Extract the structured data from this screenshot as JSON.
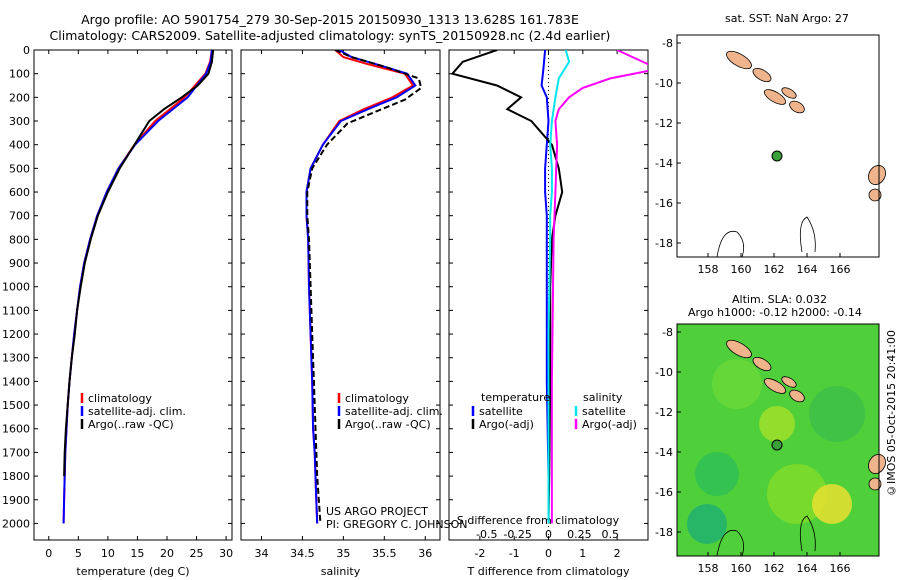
{
  "header": {
    "line1": "Argo profile: AO 5901754_279 30-Sep-2015 20150930_1313 13.628S 161.783E",
    "line2": "Climatology: CARS2009. Satellite-adjusted climatology: synTS_20150928.nc (2.4d earlier)"
  },
  "colors": {
    "climatology": "#ff0000",
    "satellite": "#0000ff",
    "argo": "#000000",
    "sal_satellite": "#00e5ee",
    "sal_argo": "#ff00ff",
    "land": "#f0b48c",
    "float_marker": "#3aa03a"
  },
  "chart_data": [
    {
      "type": "line",
      "name": "temperature-panel",
      "xlabel": "temperature (deg C)",
      "xticks": [
        0,
        5,
        10,
        15,
        20,
        25,
        30
      ],
      "xlim": [
        -2.5,
        31
      ],
      "ylim": [
        2070,
        0
      ],
      "yticks": [
        0,
        100,
        200,
        300,
        400,
        500,
        600,
        700,
        800,
        900,
        1000,
        1100,
        1200,
        1300,
        1400,
        1500,
        1600,
        1700,
        1800,
        1900,
        2000
      ],
      "legend": [
        "climatology",
        "satellite-adj. clim.",
        "Argo(..raw -QC)"
      ],
      "series": [
        {
          "name": "climatology",
          "color": "#ff0000",
          "x": [
            27.6,
            27.3,
            26.5,
            23,
            18,
            14.5,
            11.8,
            9.8,
            8.2,
            7,
            6,
            5.3,
            4.8,
            4.3,
            3.9,
            3.5,
            3.2,
            3,
            2.8,
            2.7,
            2.6,
            2.5
          ],
          "y": [
            0,
            50,
            100,
            200,
            300,
            400,
            500,
            600,
            700,
            800,
            900,
            1000,
            1100,
            1200,
            1300,
            1400,
            1500,
            1600,
            1700,
            1800,
            1900,
            2000
          ]
        },
        {
          "name": "satellite-adj. clim.",
          "color": "#0000ff",
          "x": [
            27.6,
            27.4,
            26.6,
            23.5,
            18.5,
            14.6,
            11.8,
            9.8,
            8.2,
            7,
            6,
            5.3,
            4.8,
            4.3,
            3.9,
            3.5,
            3.2,
            3,
            2.8,
            2.7,
            2.6,
            2.5
          ],
          "y": [
            0,
            50,
            100,
            200,
            300,
            400,
            500,
            600,
            700,
            800,
            900,
            1000,
            1100,
            1200,
            1300,
            1400,
            1500,
            1600,
            1700,
            1800,
            1900,
            2000
          ]
        },
        {
          "name": "Argo(..raw -QC)",
          "color": "#000000",
          "x": [
            27.8,
            27.6,
            27,
            25.2,
            22.5,
            19.5,
            17,
            14.5,
            12,
            10,
            8.3,
            7.1,
            6.1,
            5.4,
            4.8,
            4.4,
            3.9,
            3.5,
            3.2,
            2.9,
            2.7,
            2.6
          ],
          "y": [
            0,
            50,
            100,
            150,
            200,
            250,
            300,
            400,
            500,
            600,
            700,
            800,
            900,
            1000,
            1100,
            1200,
            1300,
            1400,
            1500,
            1600,
            1700,
            1800
          ]
        }
      ]
    },
    {
      "type": "line",
      "name": "salinity-panel",
      "xlabel": "salinity",
      "xticks": [
        34,
        34.5,
        35,
        35.5,
        36
      ],
      "xlim": [
        33.75,
        36.18
      ],
      "ylim": [
        2070,
        0
      ],
      "legend": [
        "climatology",
        "satellite-adj. clim.",
        "Argo(..raw -QC)"
      ],
      "series": [
        {
          "name": "climatology",
          "color": "#ff0000",
          "x": [
            34.9,
            35,
            35.3,
            35.75,
            35.85,
            35.6,
            35.25,
            34.95,
            34.75,
            34.6,
            34.55,
            34.55,
            34.57,
            34.58,
            34.6,
            34.62,
            34.63,
            34.65,
            34.66,
            34.67,
            34.68
          ],
          "y": [
            0,
            30,
            60,
            100,
            150,
            200,
            250,
            300,
            400,
            500,
            600,
            700,
            800,
            1000,
            1200,
            1400,
            1600,
            1700,
            1800,
            1900,
            2000
          ]
        },
        {
          "name": "satellite-adj. clim.",
          "color": "#0000ff",
          "x": [
            34.95,
            35.1,
            35.4,
            35.78,
            35.88,
            35.65,
            35.3,
            34.97,
            34.75,
            34.6,
            34.55,
            34.55,
            34.57,
            34.58,
            34.6,
            34.62,
            34.63,
            34.65,
            34.66,
            34.67,
            34.68
          ],
          "y": [
            0,
            30,
            60,
            100,
            150,
            200,
            250,
            300,
            400,
            500,
            600,
            700,
            800,
            1000,
            1200,
            1400,
            1600,
            1700,
            1800,
            1900,
            2000
          ]
        },
        {
          "name": "Argo(..raw -QC)",
          "color": "#000000",
          "x": [
            34.9,
            35.1,
            35.5,
            35.92,
            35.95,
            35.75,
            35.4,
            35.05,
            34.8,
            34.62,
            34.56,
            34.56,
            34.58,
            34.6,
            34.62,
            34.64,
            34.66,
            34.68,
            34.7,
            34.72
          ],
          "y": [
            0,
            30,
            70,
            120,
            160,
            210,
            260,
            310,
            400,
            500,
            600,
            700,
            800,
            1000,
            1200,
            1400,
            1600,
            1800,
            1900,
            2000
          ]
        }
      ]
    },
    {
      "type": "line",
      "name": "difference-panel",
      "xlabel": "T difference from climatology",
      "xlabel2": "S difference from climatology",
      "xticks": [
        -2,
        -1,
        0,
        1,
        2
      ],
      "xticks_top": [
        "-0.5",
        "-0.25",
        "0",
        "0.25",
        "0.5"
      ],
      "xlim": [
        -2.9,
        2.9
      ],
      "ylim": [
        2070,
        0
      ],
      "legend_titles": [
        "temperature",
        "salinity"
      ],
      "legend": [
        "satellite",
        "Argo(-adj)",
        "satellite",
        "Argo(-adj)"
      ],
      "series": [
        {
          "name": "T satellite",
          "color": "#0000ff",
          "x": [
            -0.1,
            -0.15,
            -0.2,
            -0.05,
            0,
            -0.05,
            -0.1,
            -0.1,
            -0.05,
            -0.05,
            -0.05,
            -0.05,
            0,
            0
          ],
          "y": [
            0,
            80,
            150,
            200,
            300,
            400,
            500,
            600,
            700,
            800,
            1000,
            1400,
            1800,
            2000
          ]
        },
        {
          "name": "T Argo(-adj)",
          "color": "#000000",
          "x": [
            -1.5,
            -2.5,
            -2.8,
            -1.5,
            -0.8,
            -1.2,
            -0.5,
            0.1,
            0.3,
            0.4,
            0.2,
            0.1,
            0.05,
            0.05,
            0.02,
            0
          ],
          "y": [
            0,
            50,
            100,
            150,
            200,
            250,
            300,
            400,
            500,
            600,
            700,
            800,
            1000,
            1400,
            1800,
            2000
          ]
        },
        {
          "name": "S satellite",
          "color": "#00e5ee",
          "x": [
            0.5,
            0.6,
            0.3,
            0.2,
            0.1,
            0.05,
            0.1,
            0.1,
            0.05,
            0.05,
            0,
            0
          ],
          "y": [
            0,
            50,
            120,
            200,
            300,
            400,
            500,
            600,
            700,
            800,
            1200,
            2000
          ]
        },
        {
          "name": "S Argo(-adj)",
          "color": "#ff00ff",
          "x": [
            2,
            3.2,
            1.8,
            1,
            0.6,
            0.3,
            0.2,
            0.25,
            0.2,
            0.15,
            0.1,
            0.1
          ],
          "y": [
            0,
            80,
            120,
            160,
            200,
            250,
            300,
            400,
            600,
            800,
            1400,
            2000
          ]
        }
      ]
    }
  ],
  "maps": {
    "sst": {
      "title": "sat. SST: NaN Argo: 27",
      "xticks": [
        "158",
        "160",
        "162",
        "164",
        "166"
      ],
      "yticks": [
        "-8",
        "-10",
        "-12",
        "-14",
        "-16",
        "-18"
      ]
    },
    "sla": {
      "title1": "Altim. SLA: 0.032",
      "title2": "Argo h1000: -0.12 h2000: -0.14",
      "xticks": [
        "158",
        "160",
        "162",
        "164",
        "166"
      ],
      "yticks": [
        "-8",
        "-10",
        "-12",
        "-14",
        "-16",
        "-18"
      ]
    },
    "float_position": {
      "lon": 161.783,
      "lat": -13.628
    }
  },
  "texts": {
    "project": "US ARGO PROJECT",
    "pi": "PI: GREGORY C. JOHNSON",
    "credit": "©IMOS 05-Oct-2015 20:41:00"
  }
}
